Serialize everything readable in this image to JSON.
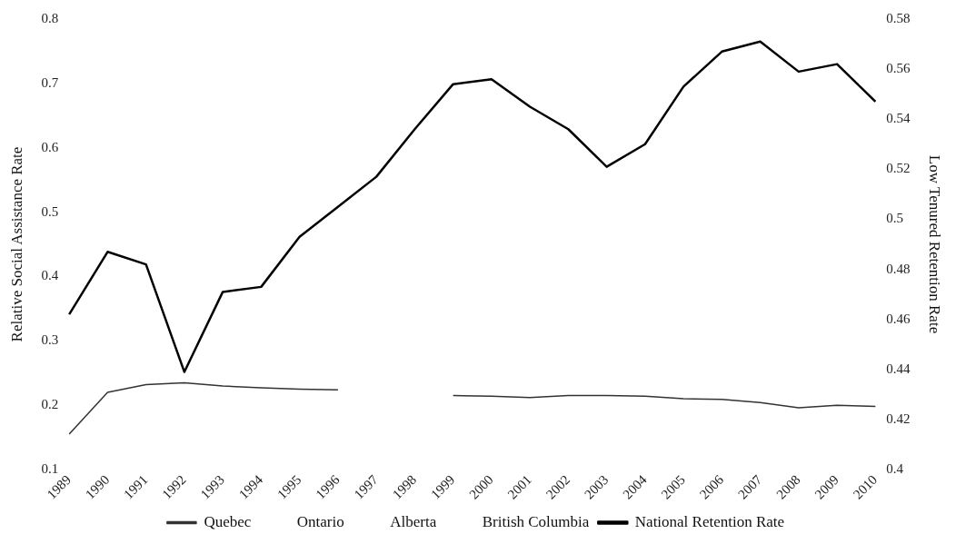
{
  "chart_data": {
    "type": "line",
    "ylabel": "Relative Social Assistance Rate",
    "y2label": "Low Tenured Retention Rate",
    "categories": [
      "1989",
      "1990",
      "1991",
      "1992",
      "1993",
      "1994",
      "1995",
      "1996",
      "1997",
      "1998",
      "1999",
      "2000",
      "2001",
      "2002",
      "2003",
      "2004",
      "2005",
      "2006",
      "2007",
      "2008",
      "2009",
      "2010"
    ],
    "series": [
      {
        "name": "Quebec",
        "color": "#333333",
        "values": [
          0.155,
          0.22,
          0.232,
          0.235,
          0.23,
          0.227,
          0.225,
          0.224,
          null,
          null,
          0.215,
          0.214,
          0.212,
          0.215,
          0.215,
          0.214,
          0.21,
          0.209,
          0.204,
          0.196,
          0.2,
          0.198
        ]
      },
      {
        "name": "Ontario",
        "values": [
          null,
          null,
          null,
          null,
          null,
          null,
          null,
          null,
          null,
          null,
          null,
          null,
          null,
          null,
          null,
          null,
          null,
          null,
          null,
          null,
          null,
          null
        ]
      },
      {
        "name": "Alberta",
        "values": [
          null,
          null,
          null,
          null,
          null,
          null,
          null,
          null,
          null,
          null,
          null,
          null,
          null,
          null,
          null,
          null,
          null,
          null,
          null,
          null,
          null,
          null
        ]
      },
      {
        "name": "British Columbia",
        "values": [
          null,
          null,
          null,
          null,
          null,
          null,
          null,
          null,
          null,
          null,
          null,
          null,
          null,
          null,
          null,
          null,
          null,
          null,
          null,
          null,
          null,
          null
        ]
      },
      {
        "name": "National Retention Rate",
        "color": "#000000",
        "axis": "y2",
        "values": [
          0.462,
          0.487,
          0.482,
          0.439,
          0.471,
          0.473,
          0.493,
          0.505,
          0.517,
          0.536,
          0.554,
          0.556,
          0.545,
          0.536,
          0.521,
          0.53,
          0.553,
          0.567,
          0.571,
          0.559,
          0.562,
          0.547
        ]
      }
    ],
    "ylim": [
      0.1,
      0.8
    ],
    "yticks": [
      0.1,
      0.2,
      0.3,
      0.4,
      0.5,
      0.6,
      0.7,
      0.8
    ],
    "y2lim": [
      0.4,
      0.58
    ],
    "y2ticks": [
      0.4,
      0.42,
      0.44,
      0.46,
      0.48,
      0.5,
      0.52,
      0.54,
      0.56,
      0.58
    ],
    "grid": false,
    "legend": "bottom",
    "marker": "none",
    "line_style": "solid"
  }
}
